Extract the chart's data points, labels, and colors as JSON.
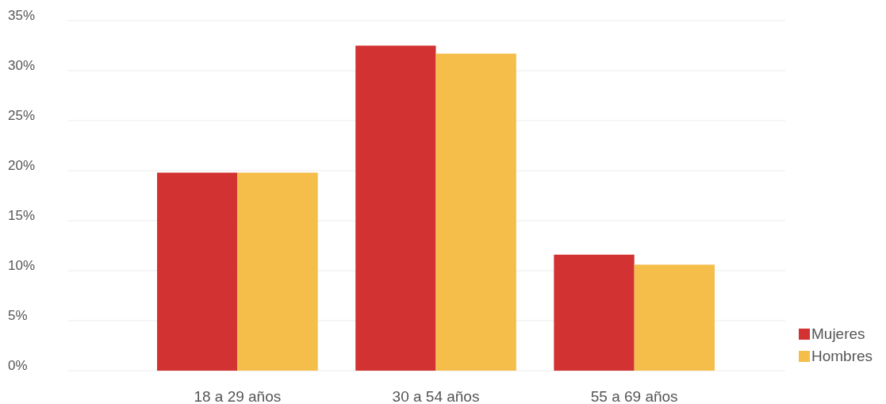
{
  "chart_data": {
    "type": "bar",
    "categories": [
      "18 a 29 años",
      "30 a 54 años",
      "55 a 69 años"
    ],
    "series": [
      {
        "name": "Mujeres",
        "color": "#d33232",
        "values": [
          19.8,
          32.5,
          11.6
        ]
      },
      {
        "name": "Hombres",
        "color": "#f5be4b",
        "values": [
          19.8,
          31.7,
          10.6
        ]
      }
    ],
    "ylim": [
      0,
      35
    ],
    "yticks": [
      {
        "value": 0,
        "label": "0%"
      },
      {
        "value": 5,
        "label": "5%"
      },
      {
        "value": 10,
        "label": "10%"
      },
      {
        "value": 15,
        "label": "15%"
      },
      {
        "value": 20,
        "label": "20%"
      },
      {
        "value": 25,
        "label": "25%"
      },
      {
        "value": 30,
        "label": "30%"
      },
      {
        "value": 35,
        "label": "35%"
      }
    ],
    "grid": "y",
    "legend": "bottom right"
  }
}
